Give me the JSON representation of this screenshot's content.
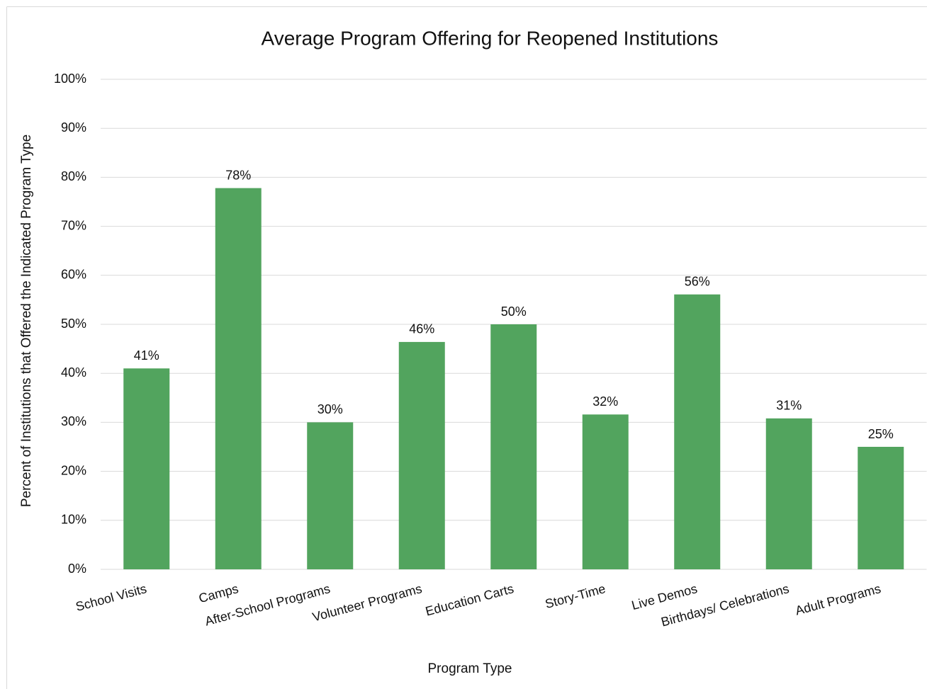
{
  "chart_data": {
    "type": "bar",
    "title": "Average Program Offering for Reopened Institutions",
    "x_label": "Program Type",
    "y_label": "Percent of Institutions that Offered the Indicated Program Type",
    "categories": [
      "School Visits",
      "Camps",
      "After-School Programs",
      "Volunteer Programs",
      "Education Carts",
      "Story-Time",
      "Live Demos",
      "Birthdays/ Celebrations",
      "Adult Programs"
    ],
    "values": [
      41,
      77.8,
      30,
      46.4,
      50,
      31.6,
      56.1,
      30.8,
      25
    ],
    "value_labels": [
      "41%",
      "78%",
      "30%",
      "46%",
      "50%",
      "32%",
      "56%",
      "31%",
      "25%"
    ],
    "color": "#52a45e",
    "ylim": [
      0,
      100
    ],
    "yticks": [
      {
        "value": 0,
        "label": "0%"
      },
      {
        "value": 10,
        "label": "10%"
      },
      {
        "value": 20,
        "label": "20%"
      },
      {
        "value": 30,
        "label": "30%"
      },
      {
        "value": 40,
        "label": "40%"
      },
      {
        "value": 50,
        "label": "50%"
      },
      {
        "value": 60,
        "label": "60%"
      },
      {
        "value": 70,
        "label": "70%"
      },
      {
        "value": 80,
        "label": "80%"
      },
      {
        "value": 90,
        "label": "90%"
      },
      {
        "value": 100,
        "label": "100%"
      }
    ],
    "grid": true
  }
}
